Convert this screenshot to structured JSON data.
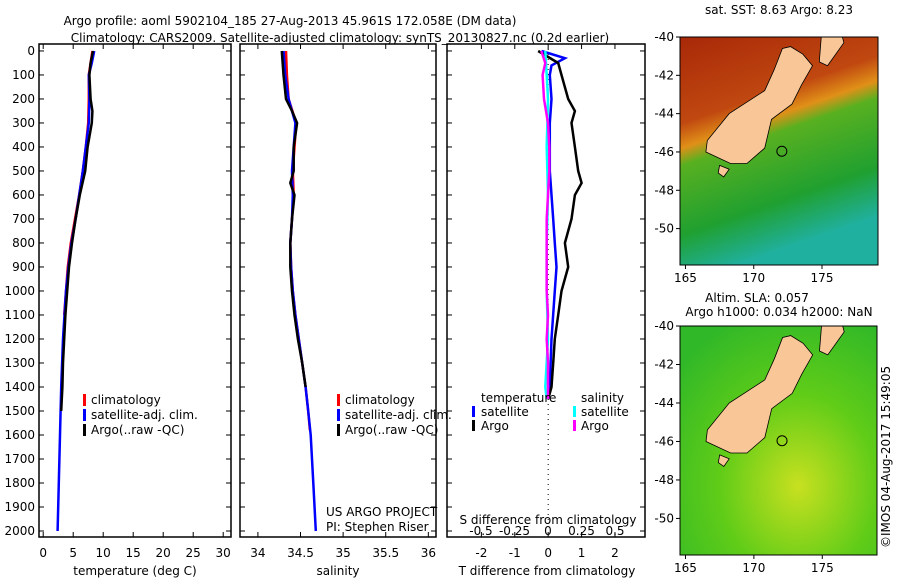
{
  "title": {
    "line1": "Argo profile: aoml 5902104_185 27-Aug-2013 45.961S 172.058E (DM data)",
    "line2": "Climatology: CARS2009. Satellite-adjusted climatology: synTS_20130827.nc (0.2d earlier)"
  },
  "credit": {
    "project": "US ARGO PROJECT",
    "pi": "PI: Stephen Riser",
    "timestamp": "©IMOS 04-Aug-2017 15:49:05"
  },
  "colors": {
    "climatology": "#ff0000",
    "satellite": "#0000ff",
    "argo": "#000000",
    "sat_s": "#00ffff",
    "argo_s": "#ff00ff"
  },
  "chart_data": [
    {
      "type": "line",
      "name": "temperature",
      "xlabel": "temperature (deg C)",
      "ylabel": "",
      "xlim": [
        -0.7,
        31.3
      ],
      "ylim": [
        2025,
        -29
      ],
      "xticks": [
        "0",
        "5",
        "10",
        "15",
        "20",
        "25",
        "30"
      ],
      "xtick_values": [
        0,
        5,
        10,
        15,
        20,
        25,
        30
      ],
      "yticks": [
        "0",
        "100",
        "200",
        "300",
        "400",
        "500",
        "600",
        "700",
        "800",
        "900",
        "1000",
        "1100",
        "1200",
        "1300",
        "1400",
        "1500",
        "1600",
        "1700",
        "1800",
        "1900",
        "2000"
      ],
      "legend": [
        "climatology",
        "satellite-adj. clim.",
        "Argo(..raw -QC)"
      ],
      "series": [
        {
          "name": "climatology",
          "color": "#ff0000",
          "depth": [
            0,
            100,
            200,
            300,
            400,
            500,
            600,
            700,
            800,
            900,
            1000,
            1100
          ],
          "values": [
            8.2,
            7.6,
            7.6,
            7.5,
            7.1,
            6.6,
            6.0,
            5.3,
            4.6,
            4.1,
            3.8,
            3.5
          ]
        },
        {
          "name": "satellite-adj. clim.",
          "color": "#0000ff",
          "depth": [
            0,
            50,
            100,
            200,
            300,
            400,
            500,
            600,
            700,
            800,
            900,
            1000,
            1200,
            1400,
            1600,
            1800,
            2000
          ],
          "values": [
            8.5,
            8.1,
            7.6,
            7.7,
            7.6,
            7.1,
            6.6,
            6.0,
            5.4,
            4.7,
            4.2,
            3.8,
            3.3,
            3.0,
            2.8,
            2.6,
            2.4
          ]
        },
        {
          "name": "Argo",
          "color": "#000000",
          "depth": [
            0,
            50,
            100,
            200,
            250,
            300,
            400,
            500,
            600,
            700,
            800,
            900,
            1000,
            1100,
            1200,
            1300,
            1400,
            1500
          ],
          "values": [
            8.3,
            7.9,
            7.7,
            7.9,
            8.2,
            8.1,
            7.4,
            7.0,
            6.1,
            5.4,
            4.8,
            4.3,
            4.0,
            3.7,
            3.5,
            3.3,
            3.2,
            3.0
          ]
        }
      ]
    },
    {
      "type": "line",
      "name": "salinity",
      "xlabel": "salinity",
      "xlim": [
        33.79,
        36.09
      ],
      "ylim": [
        2025,
        -29
      ],
      "xticks": [
        "34",
        "34.5",
        "35",
        "35.5",
        "36"
      ],
      "xtick_values": [
        34,
        34.5,
        35,
        35.5,
        36
      ],
      "legend": [
        "climatology",
        "satellite-adj. clim.",
        "Argo(..raw -QC)"
      ],
      "series": [
        {
          "name": "climatology",
          "color": "#ff0000",
          "depth": [
            0,
            100,
            200,
            300,
            400,
            500,
            600,
            700,
            800,
            900,
            1000,
            1100,
            1200,
            1300,
            1400,
            1500,
            1580
          ],
          "values": [
            34.33,
            34.34,
            34.36,
            34.45,
            34.43,
            34.41,
            34.42,
            34.4,
            34.38,
            34.39,
            34.41,
            34.44,
            34.48,
            34.52,
            34.56,
            34.59,
            34.61
          ]
        },
        {
          "name": "satellite-adj. clim.",
          "color": "#0000ff",
          "depth": [
            0,
            100,
            200,
            300,
            400,
            500,
            600,
            700,
            800,
            900,
            1000,
            1100,
            1200,
            1300,
            1400,
            1500,
            1600,
            1800,
            2000
          ],
          "values": [
            34.3,
            34.32,
            34.36,
            34.44,
            34.42,
            34.4,
            34.41,
            34.4,
            34.38,
            34.39,
            34.41,
            34.44,
            34.48,
            34.52,
            34.56,
            34.59,
            34.62,
            34.65,
            34.68
          ]
        },
        {
          "name": "Argo",
          "color": "#000000",
          "depth": [
            0,
            100,
            200,
            250,
            300,
            400,
            500,
            550,
            600,
            700,
            800,
            900,
            1000,
            1100,
            1200,
            1300,
            1400
          ],
          "values": [
            34.28,
            34.3,
            34.33,
            34.4,
            34.46,
            34.42,
            34.42,
            34.38,
            34.43,
            34.4,
            34.38,
            34.38,
            34.4,
            34.43,
            34.47,
            34.52,
            34.56
          ]
        }
      ]
    },
    {
      "type": "line",
      "name": "difference",
      "xlabel": "T difference from climatology",
      "x2label": "S difference from climatology",
      "xlim": [
        -3.03,
        2.9
      ],
      "x2lim": [
        -0.5,
        0.5
      ],
      "ylim": [
        2025,
        -29
      ],
      "xticks": [
        "-2",
        "-1",
        "0",
        "1",
        "2"
      ],
      "xtick_values": [
        -2,
        -1,
        0,
        1,
        2
      ],
      "x2ticks": [
        "-0.5",
        "-0.25",
        "0",
        "0.25",
        "0.5"
      ],
      "x2tick_values": [
        -0.5,
        -0.25,
        0,
        0.25,
        0.5
      ],
      "legend_temperature": {
        "title": "temperature",
        "satellite": "satellite",
        "argo": "Argo"
      },
      "legend_salinity": {
        "title": "salinity",
        "satellite": "satellite",
        "argo": "Argo"
      },
      "series": [
        {
          "name": "T satellite",
          "color": "#0000ff",
          "axis": "T",
          "depth": [
            0,
            30,
            60,
            100,
            200,
            300,
            500,
            700,
            800,
            900,
            1000,
            1200,
            1400,
            1450
          ],
          "values": [
            -0.2,
            0.5,
            0.1,
            0.05,
            0.1,
            0.05,
            0.05,
            0.15,
            0.2,
            0.25,
            0.2,
            0.1,
            0.05,
            0.0
          ]
        },
        {
          "name": "T Argo",
          "color": "#000000",
          "axis": "T",
          "depth": [
            0,
            50,
            100,
            200,
            250,
            300,
            400,
            500,
            550,
            600,
            700,
            800,
            900,
            1000,
            1100,
            1200,
            1300,
            1400,
            1450
          ],
          "values": [
            -0.3,
            0.3,
            0.4,
            0.6,
            0.8,
            0.7,
            0.8,
            0.9,
            1.0,
            0.8,
            0.7,
            0.5,
            0.6,
            0.4,
            0.3,
            0.2,
            0.15,
            0.1,
            0.0
          ]
        },
        {
          "name": "S satellite",
          "color": "#00ffff",
          "axis": "S",
          "depth": [
            0,
            100,
            200,
            400,
            600,
            800,
            1000,
            1200,
            1400,
            1450
          ],
          "values": [
            -0.02,
            -0.01,
            0.0,
            -0.01,
            0.0,
            -0.01,
            -0.01,
            0.0,
            -0.02,
            -0.01
          ]
        },
        {
          "name": "S Argo",
          "color": "#ff00ff",
          "axis": "S",
          "depth": [
            0,
            50,
            100,
            200,
            300,
            400,
            500,
            600,
            700,
            800,
            900,
            1000,
            1100,
            1200,
            1300,
            1400,
            1450
          ],
          "values": [
            -0.05,
            -0.02,
            -0.04,
            -0.03,
            0.0,
            0.01,
            0.01,
            0.0,
            -0.01,
            -0.01,
            -0.01,
            -0.01,
            0.0,
            -0.01,
            0.0,
            0.0,
            0.0
          ]
        }
      ]
    },
    {
      "type": "heatmap",
      "name": "sst-map",
      "title": "sat. SST: 8.63 Argo: 8.23",
      "xlim": [
        164.6,
        179.1
      ],
      "ylim": [
        -40,
        -51.9
      ],
      "xticks": [
        "165",
        "170",
        "175"
      ],
      "xtick_values": [
        165,
        170,
        175
      ],
      "yticks": [
        "-40",
        "-42",
        "-44",
        "-46",
        "-48",
        "-50"
      ],
      "ytick_values": [
        -40,
        -42,
        -44,
        -46,
        -48,
        -50
      ],
      "float_position": [
        172.058,
        -45.961
      ]
    },
    {
      "type": "heatmap",
      "name": "sla-map",
      "title": "Altim. SLA: 0.057",
      "subtitle": "Argo h1000: 0.034 h2000: NaN",
      "xlim": [
        164.6,
        179.0
      ],
      "ylim": [
        -40,
        -51.9
      ],
      "xticks": [
        "165",
        "170",
        "175"
      ],
      "xtick_values": [
        165,
        170,
        175
      ],
      "yticks": [
        "-40",
        "-42",
        "-44",
        "-46",
        "-48",
        "-50"
      ],
      "ytick_values": [
        -40,
        -42,
        -44,
        -46,
        -48,
        -50
      ],
      "float_position": [
        172.058,
        -45.961
      ]
    }
  ]
}
